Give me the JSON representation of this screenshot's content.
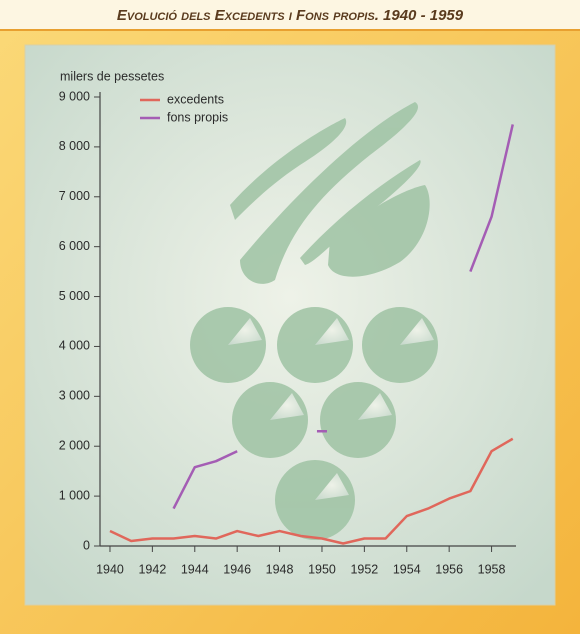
{
  "chart_data": {
    "type": "line",
    "title": "Evolució dels Excedents i Fons propis. 1940 - 1959",
    "y_label": "milers de pessetes",
    "x": [
      1940,
      1941,
      1942,
      1943,
      1944,
      1945,
      1946,
      1947,
      1948,
      1949,
      1950,
      1951,
      1952,
      1953,
      1954,
      1955,
      1956,
      1957,
      1958,
      1959
    ],
    "series": [
      {
        "name": "excedents",
        "color": "#e0675b",
        "values": [
          300,
          100,
          150,
          150,
          200,
          150,
          300,
          200,
          300,
          200,
          150,
          50,
          150,
          150,
          600,
          750,
          950,
          1100,
          1900,
          2150
        ]
      },
      {
        "name": "fons propis",
        "color": "#a45db4",
        "values": [
          null,
          null,
          null,
          750,
          1580,
          1700,
          1900,
          null,
          null,
          null,
          2300,
          null,
          null,
          null,
          null,
          null,
          null,
          5500,
          6600,
          8450
        ]
      }
    ],
    "xlim": [
      1939.6,
      1959.2
    ],
    "xticks": [
      1940,
      1942,
      1944,
      1946,
      1948,
      1950,
      1952,
      1954,
      1956,
      1958
    ],
    "ylim": [
      0,
      9000
    ],
    "yticks": [
      {
        "value": 0,
        "label": "0"
      },
      {
        "value": 1000,
        "label": "1 000"
      },
      {
        "value": 2000,
        "label": "2 000"
      },
      {
        "value": 3000,
        "label": "3 000"
      },
      {
        "value": 4000,
        "label": "4 000"
      },
      {
        "value": 5000,
        "label": "5 000"
      },
      {
        "value": 6000,
        "label": "6 000"
      },
      {
        "value": 7000,
        "label": "7 000"
      },
      {
        "value": 8000,
        "label": "8 000"
      },
      {
        "value": 9000,
        "label": "9 000"
      }
    ],
    "grid": false,
    "legend": "top-left"
  }
}
